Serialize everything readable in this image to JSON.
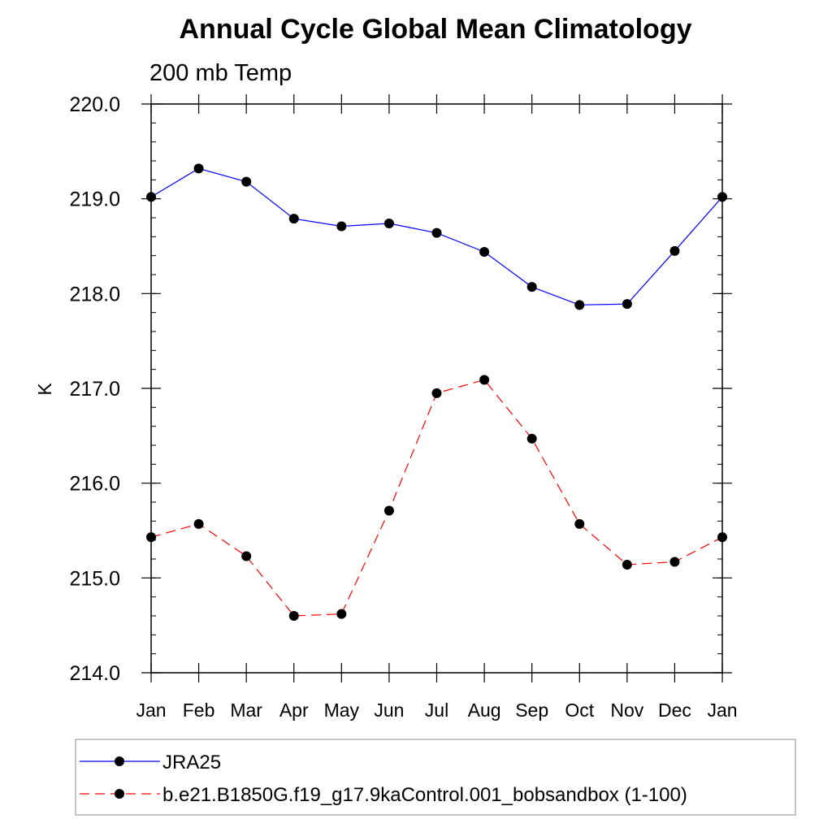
{
  "chart_data": {
    "type": "line",
    "title": "Annual Cycle Global Mean Climatology",
    "subtitle": "200 mb Temp",
    "xlabel": "",
    "ylabel": "K",
    "categories": [
      "Jan",
      "Feb",
      "Mar",
      "Apr",
      "May",
      "Jun",
      "Jul",
      "Aug",
      "Sep",
      "Oct",
      "Nov",
      "Dec",
      "Jan"
    ],
    "ylim": [
      214.0,
      220.0
    ],
    "yticks": [
      214.0,
      215.0,
      216.0,
      217.0,
      218.0,
      219.0,
      220.0
    ],
    "ytick_labels": [
      "214.0",
      "215.0",
      "216.0",
      "217.0",
      "218.0",
      "219.0",
      "220.0"
    ],
    "series": [
      {
        "name": "JRA25",
        "color": "#0000ff",
        "dash": "solid",
        "values": [
          219.02,
          219.32,
          219.18,
          218.79,
          218.71,
          218.74,
          218.64,
          218.44,
          218.07,
          217.88,
          217.89,
          218.45,
          219.02
        ]
      },
      {
        "name": "b.e21.B1850G.f19_g17.9kaControl.001_bobsandbox (1-100)",
        "color": "#ff0000",
        "dash": "dashed",
        "values": [
          215.43,
          215.57,
          215.23,
          214.6,
          214.62,
          215.71,
          216.95,
          217.09,
          216.47,
          215.57,
          215.14,
          215.17,
          215.43
        ]
      }
    ],
    "legend_position": "bottom",
    "grid": false
  }
}
